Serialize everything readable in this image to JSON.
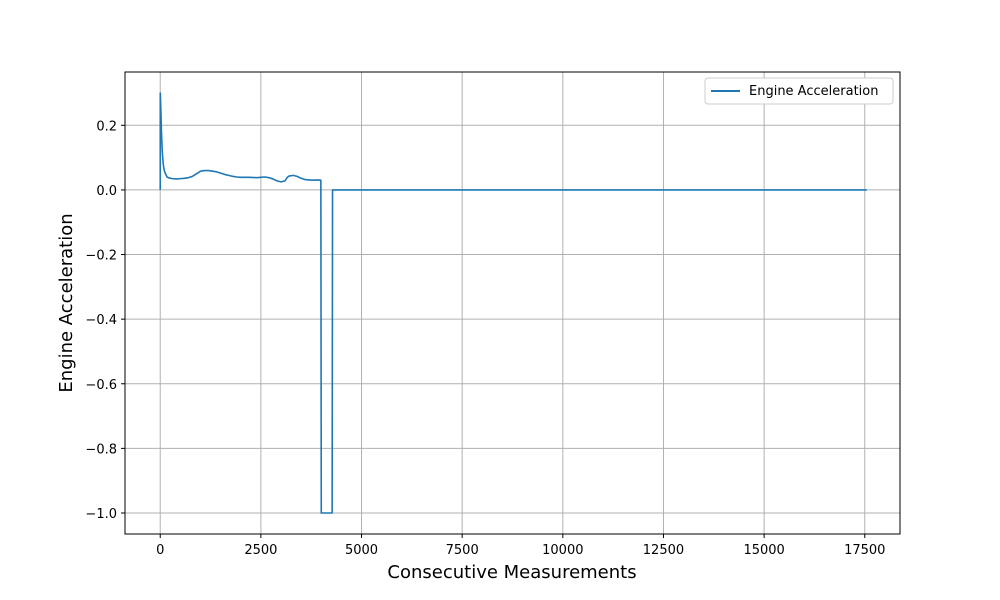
{
  "chart_data": {
    "type": "line",
    "title": "",
    "xlabel": "Consecutive Measurements",
    "ylabel": "Engine Acceleration",
    "xlim": [
      -875,
      18375
    ],
    "ylim": [
      -1.065,
      0.365
    ],
    "xticks": [
      0,
      2500,
      5000,
      7500,
      10000,
      12500,
      15000,
      17500
    ],
    "xtick_labels": [
      "0",
      "2500",
      "5000",
      "7500",
      "10000",
      "12500",
      "15000",
      "17500"
    ],
    "yticks": [
      -1.0,
      -0.8,
      -0.6,
      -0.4,
      -0.2,
      0.0,
      0.2
    ],
    "ytick_labels": [
      "−1.0",
      "−0.8",
      "−0.6",
      "−0.4",
      "−0.2",
      "0.0",
      "0.2"
    ],
    "grid": true,
    "legend": {
      "position": "upper right",
      "entries": [
        "Engine Acceleration"
      ]
    },
    "colors": {
      "series": "#1f77b4",
      "grid": "#b0b0b0",
      "axis": "#000000"
    },
    "series": [
      {
        "name": "Engine Acceleration",
        "x": [
          0,
          1,
          5,
          10,
          20,
          30,
          50,
          75,
          100,
          130,
          170,
          220,
          300,
          400,
          500,
          600,
          700,
          800,
          900,
          1000,
          1100,
          1200,
          1300,
          1400,
          1500,
          1600,
          1700,
          1800,
          1900,
          2000,
          2200,
          2400,
          2500,
          2600,
          2700,
          2800,
          2900,
          3000,
          3100,
          3150,
          3200,
          3300,
          3400,
          3500,
          3600,
          3700,
          3800,
          3900,
          3990,
          4000,
          4010,
          4270,
          4280,
          4300,
          5000,
          7500,
          10000,
          12500,
          15000,
          17500,
          17550
        ],
        "y": [
          0.0,
          0.3,
          0.29,
          0.27,
          0.23,
          0.18,
          0.12,
          0.08,
          0.06,
          0.05,
          0.04,
          0.037,
          0.035,
          0.034,
          0.035,
          0.036,
          0.038,
          0.042,
          0.05,
          0.058,
          0.06,
          0.06,
          0.058,
          0.056,
          0.052,
          0.048,
          0.045,
          0.042,
          0.04,
          0.039,
          0.039,
          0.038,
          0.039,
          0.04,
          0.038,
          0.034,
          0.028,
          0.025,
          0.028,
          0.038,
          0.043,
          0.045,
          0.042,
          0.036,
          0.032,
          0.031,
          0.03,
          0.031,
          0.03,
          -1.0,
          -1.0,
          -1.0,
          0.0,
          0.0,
          0.0,
          0.0,
          0.0,
          0.0,
          0.0,
          0.0,
          0.0
        ]
      }
    ]
  }
}
